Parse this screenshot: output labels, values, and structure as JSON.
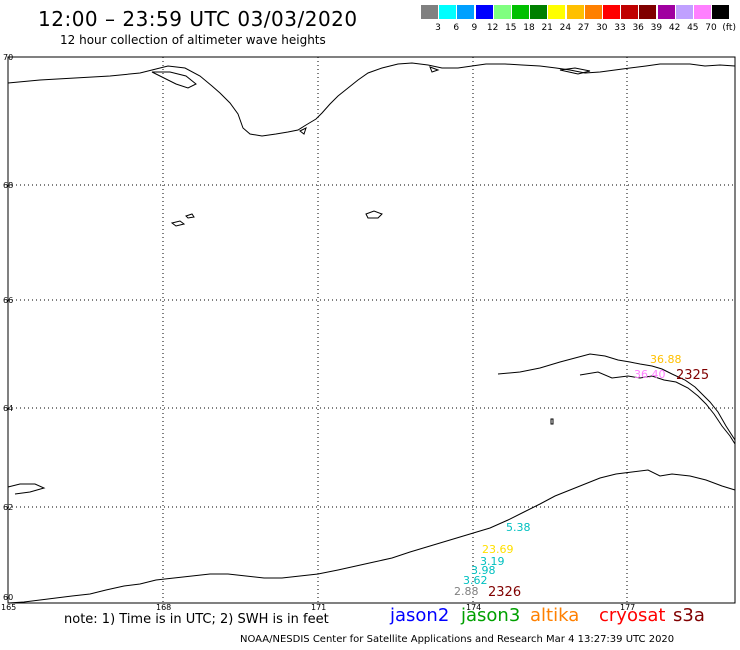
{
  "title": "12:00 – 23:59 UTC 03/03/2020",
  "subtitle": "12 hour collection of altimeter wave heights",
  "legend": {
    "colors": [
      "#808080",
      "#00ffff",
      "#00a0ff",
      "#0000ff",
      "#80ff80",
      "#00c000",
      "#008000",
      "#ffff00",
      "#ffc000",
      "#ff8000",
      "#ff0000",
      "#c00000",
      "#800000",
      "#a000a0",
      "#c0a0ff",
      "#ff80ff",
      "#000000"
    ],
    "labels": [
      "3",
      "6",
      "9",
      "12",
      "15",
      "18",
      "21",
      "24",
      "27",
      "30",
      "33",
      "36",
      "39",
      "42",
      "45",
      "70",
      "(ft)"
    ]
  },
  "axes": {
    "lat_labels": [
      "70",
      "68",
      "66",
      "64",
      "62",
      "60"
    ],
    "lon_labels": [
      "165",
      "168",
      "171",
      "174",
      "177"
    ]
  },
  "wave_labels": [
    {
      "text": "36.88",
      "color": "#ffc000"
    },
    {
      "text": "36.40",
      "color": "#ff80ff"
    },
    {
      "text": "2325",
      "color": "#800000"
    },
    {
      "text": "5.38",
      "color": "#00c0c0"
    },
    {
      "text": "23.69",
      "color": "#ffe000"
    },
    {
      "text": "3.19",
      "color": "#00c0c0"
    },
    {
      "text": "3.98",
      "color": "#00c0c0"
    },
    {
      "text": "3.62",
      "color": "#00c0c0"
    },
    {
      "text": "2.88",
      "color": "#808080"
    },
    {
      "text": "2326",
      "color": "#800000"
    }
  ],
  "note": "note:  1) Time is in UTC;  2) SWH is in feet",
  "satellites": [
    {
      "name": "jason2",
      "color": "#0000ff"
    },
    {
      "name": "jason3",
      "color": "#00a000"
    },
    {
      "name": "altika",
      "color": "#ff8000"
    },
    {
      "name": "cryosat",
      "color": "#ff0000"
    },
    {
      "name": "s3a",
      "color": "#800000"
    }
  ],
  "footer": "NOAA/NESDIS Center for Satellite Applications and Research    Mar  4 13:27:39 UTC 2020"
}
